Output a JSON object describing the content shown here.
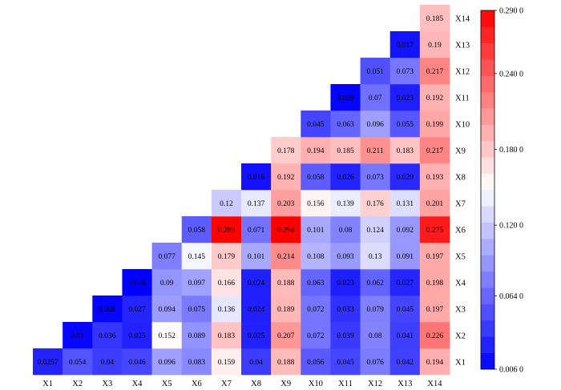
{
  "chart_data": {
    "type": "heatmap",
    "title": "",
    "xlabel": "",
    "ylabel": "",
    "x_categories": [
      "X1",
      "X2",
      "X3",
      "X4",
      "X5",
      "X6",
      "X7",
      "X8",
      "X9",
      "X10",
      "X11",
      "X12",
      "X13",
      "X14"
    ],
    "y_categories": [
      "X1",
      "X2",
      "X3",
      "X4",
      "X5",
      "X6",
      "X7",
      "X8",
      "X9",
      "X10",
      "X11",
      "X12",
      "X13",
      "X14"
    ],
    "matrix_lower_triangle": [
      [
        "0.0257"
      ],
      [
        "0.054",
        "0.01"
      ],
      [
        "0.04",
        "0.036",
        "0.008"
      ],
      [
        "0.046",
        "0.025",
        "0.027",
        "0.006"
      ],
      [
        "0.096",
        "0.152",
        "0.094",
        "0.09",
        "0.077"
      ],
      [
        "0.083",
        "0.089",
        "0.075",
        "0.097",
        "0.145",
        "0.058"
      ],
      [
        "0.159",
        "0.183",
        "0.136",
        "0.166",
        "0.179",
        "0.289",
        "0.12"
      ],
      [
        "0.04",
        "0.025",
        "0.024",
        "0.024",
        "0.101",
        "0.071",
        "0.137",
        "0.016"
      ],
      [
        "0.188",
        "0.207",
        "0.189",
        "0.188",
        "0.214",
        "0.294",
        "0.203",
        "0.192",
        "0.178"
      ],
      [
        "0.056",
        "0.072",
        "0.072",
        "0.063",
        "0.108",
        "0.101",
        "0.156",
        "0.058",
        "0.194",
        "0.045"
      ],
      [
        "0.045",
        "0.039",
        "0.033",
        "0.023",
        "0.093",
        "0.08",
        "0.139",
        "0.026",
        "0.185",
        "0.063",
        "0.009"
      ],
      [
        "0.076",
        "0.08",
        "0.079",
        "0.062",
        "0.13",
        "0.124",
        "0.176",
        "0.073",
        "0.211",
        "0.096",
        "0.07",
        "0.051"
      ],
      [
        "0.042",
        "0.041",
        "0.045",
        "0.027",
        "0.091",
        "0.092",
        "0.131",
        "0.029",
        "0.183",
        "0.055",
        "0.023",
        "0.073",
        "0.017"
      ],
      [
        "0.194",
        "0.226",
        "0.197",
        "0.198",
        "0.197",
        "0.275",
        "0.201",
        "0.193",
        "0.217",
        "0.199",
        "0.192",
        "0.217",
        "0.19",
        "0.185"
      ]
    ],
    "colorbar": {
      "min": 0.006,
      "max": 0.29,
      "ticks": [
        "0.290 0",
        "0.240 0",
        "0.180 0",
        "0.120 0",
        "0.064 0",
        "0.006 0"
      ],
      "tick_values": [
        0.29,
        0.24,
        0.18,
        0.12,
        0.064,
        0.006
      ],
      "colors": {
        "low": "#0000ff",
        "mid": "#ffffff",
        "high": "#ff0000"
      },
      "levels": 22
    },
    "grid": false,
    "legend": "right"
  }
}
